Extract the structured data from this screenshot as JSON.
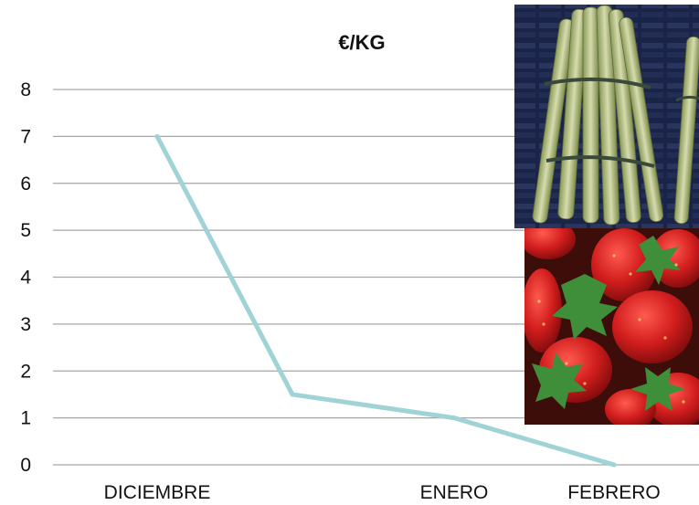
{
  "chart_data": {
    "type": "line",
    "title": "€/KG",
    "categories": [
      "DICIEMBRE",
      "",
      "ENERO",
      "FEBRERO"
    ],
    "series": [
      {
        "values": [
          7,
          1.5,
          1,
          0
        ]
      }
    ],
    "ylim": [
      0,
      8
    ],
    "yticks": [
      0,
      1,
      2,
      3,
      4,
      5,
      6,
      7,
      8
    ],
    "grid": true,
    "legend": "none",
    "colors": {
      "line": "#9fd3d6",
      "grid": "#a6a6a6",
      "text": "#111111"
    }
  },
  "photos": [
    {
      "icon": "asparagus-bundle-photo"
    },
    {
      "icon": "strawberries-photo"
    }
  ]
}
